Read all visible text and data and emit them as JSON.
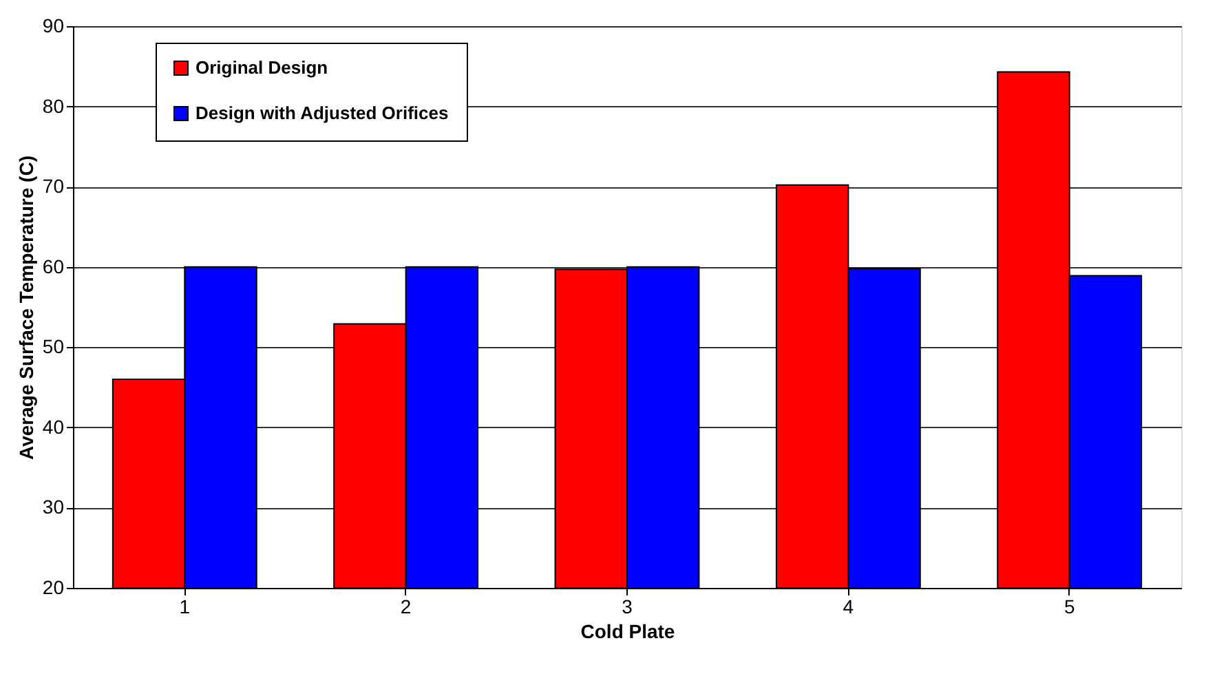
{
  "chart_data": {
    "type": "bar",
    "xlabel": "Cold Plate",
    "ylabel": "Average Surface Temperature (C)",
    "categories": [
      "1",
      "2",
      "3",
      "4",
      "5"
    ],
    "series": [
      {
        "name": "Original Design",
        "color": "#ff0000",
        "values": [
          46,
          52.9,
          59.7,
          70.2,
          84.3
        ]
      },
      {
        "name": "Design with Adjusted Orifices",
        "color": "#0000ff",
        "values": [
          60,
          60,
          60,
          59.8,
          58.9
        ]
      }
    ],
    "ylim": [
      20,
      90
    ],
    "yticks": [
      20,
      30,
      40,
      50,
      60,
      70,
      80,
      90
    ],
    "grid": "y",
    "legend": "top left"
  }
}
